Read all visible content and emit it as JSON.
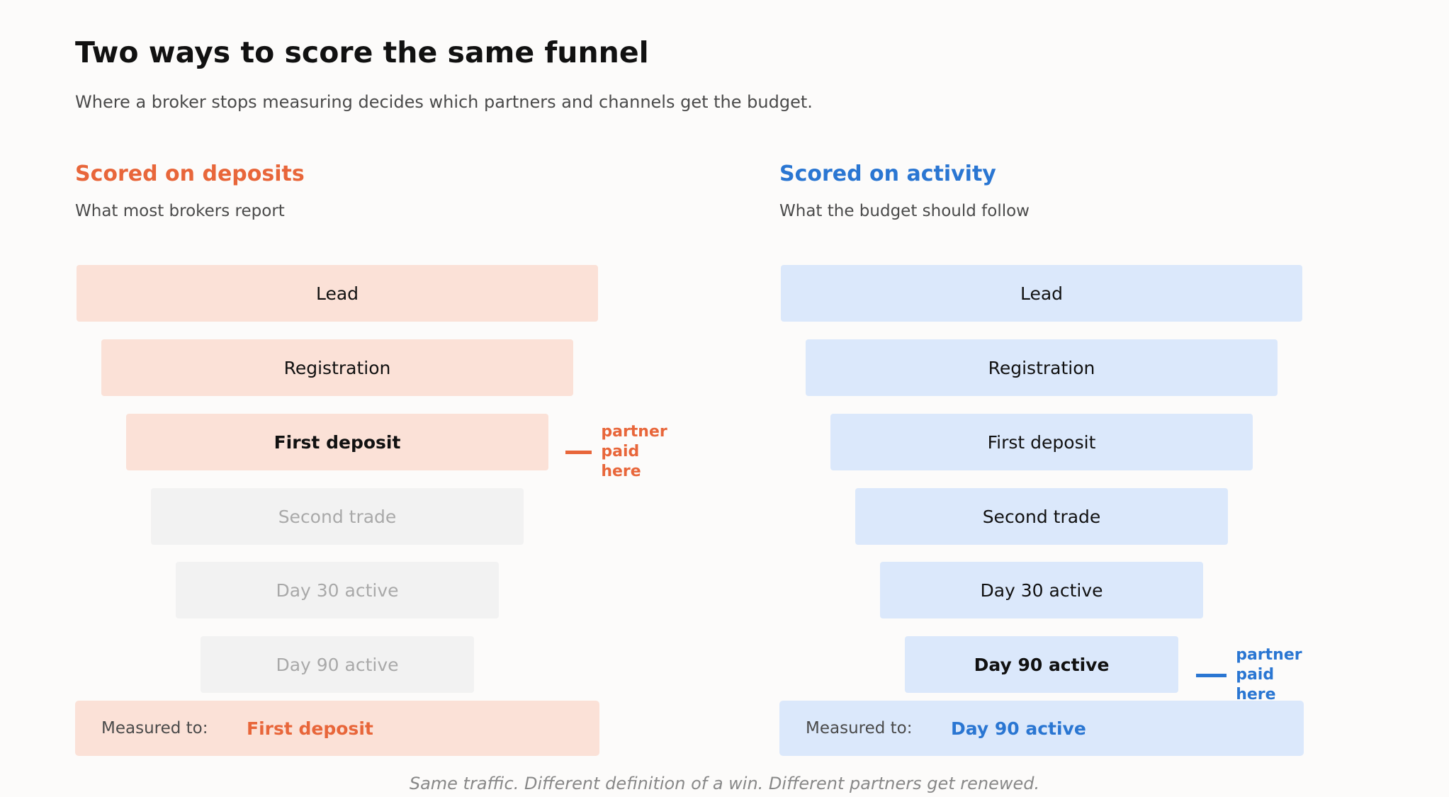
{
  "title": "Two ways to score the same funnel",
  "subtitle": "Where a broker stops measuring decides which partners and channels get the budget.",
  "colors": {
    "orange": "#e8663a",
    "blue": "#2a76d2"
  },
  "left": {
    "heading": "Scored on deposits",
    "sub": "What most brokers report",
    "stages": [
      "Lead",
      "Registration",
      "First deposit",
      "Second trade",
      "Day 30 active",
      "Day 90 active"
    ],
    "marker": {
      "line1": "partner",
      "line2": "paid here"
    },
    "measured_label": "Measured to:",
    "measured_value": "First deposit"
  },
  "right": {
    "heading": "Scored on activity",
    "sub": "What the budget should follow",
    "stages": [
      "Lead",
      "Registration",
      "First deposit",
      "Second trade",
      "Day 30 active",
      "Day 90 active"
    ],
    "marker": {
      "line1": "partner",
      "line2": "paid here"
    },
    "measured_label": "Measured to:",
    "measured_value": "Day 90 active"
  },
  "footer": "Same traffic. Different definition of a win. Different partners get renewed."
}
